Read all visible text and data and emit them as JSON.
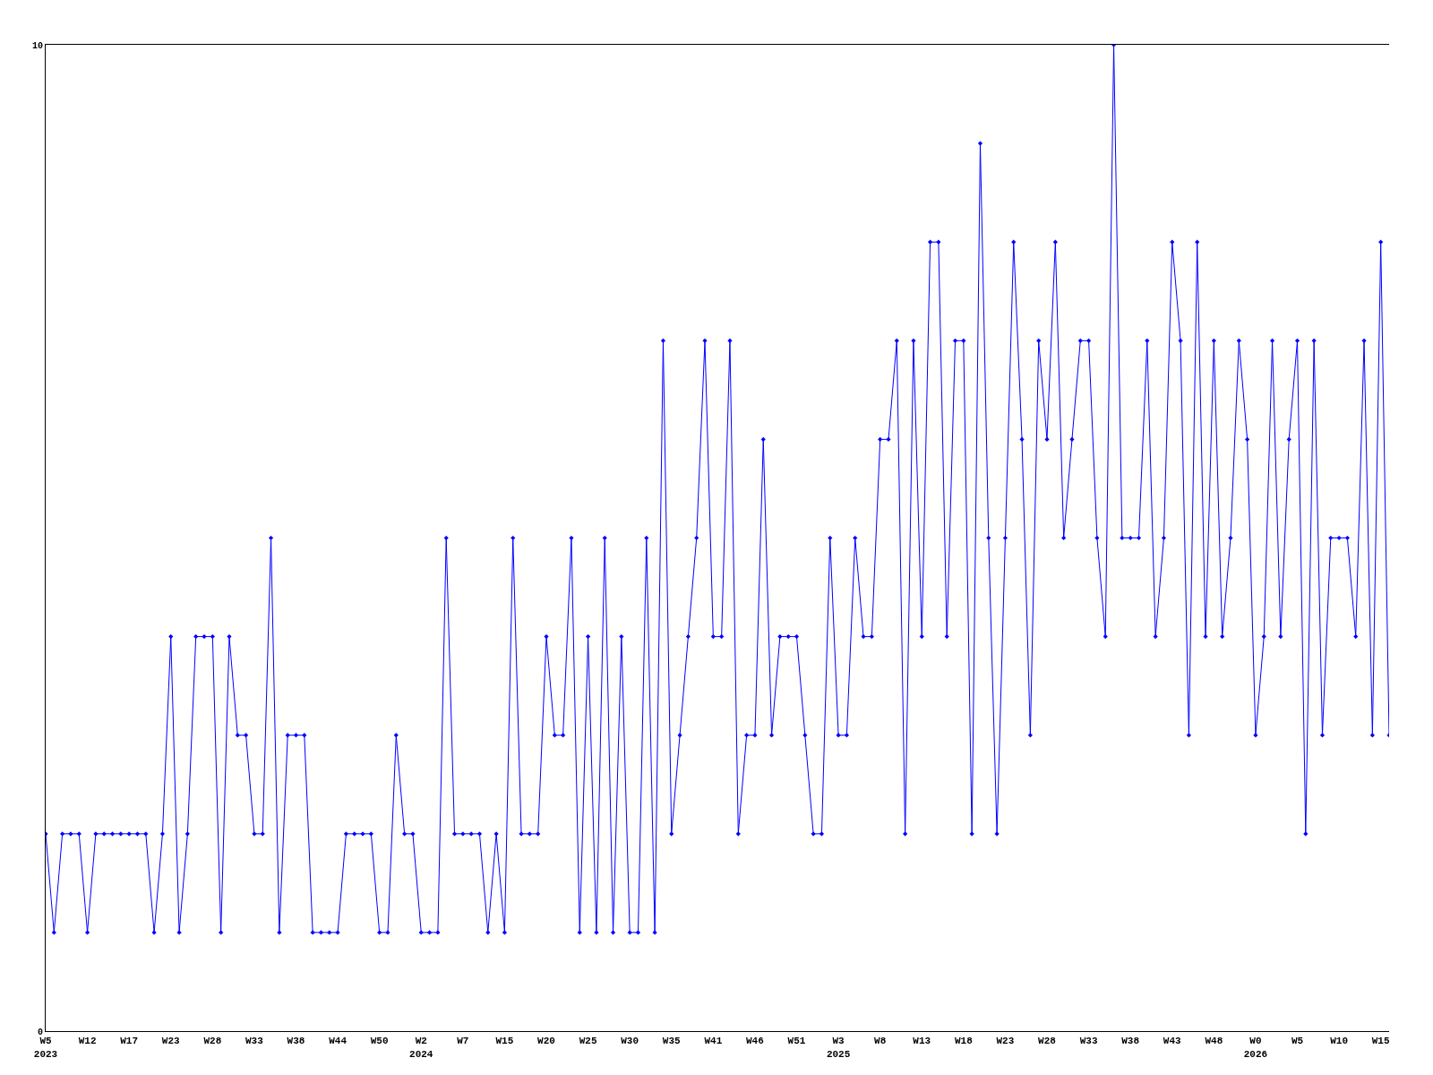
{
  "chart_data": {
    "type": "line",
    "categories": [
      "W5\n2023",
      null,
      null,
      null,
      null,
      "W12",
      null,
      null,
      null,
      null,
      "W17",
      null,
      null,
      null,
      null,
      "W23",
      null,
      null,
      null,
      null,
      "W28",
      null,
      null,
      null,
      null,
      "W33",
      null,
      null,
      null,
      null,
      "W38",
      null,
      null,
      null,
      null,
      "W44",
      null,
      null,
      null,
      null,
      "W50",
      null,
      null,
      null,
      null,
      "W2\n2024",
      null,
      null,
      null,
      null,
      "W7",
      null,
      null,
      null,
      null,
      "W15",
      null,
      null,
      null,
      null,
      "W20",
      null,
      null,
      null,
      null,
      "W25",
      null,
      null,
      null,
      null,
      "W30",
      null,
      null,
      null,
      null,
      "W35",
      null,
      null,
      null,
      null,
      "W41",
      null,
      null,
      null,
      null,
      "W46",
      null,
      null,
      null,
      null,
      "W51",
      null,
      null,
      null,
      null,
      "W3\n2025",
      null,
      null,
      null,
      null,
      "W8",
      null,
      null,
      null,
      null,
      "W13",
      null,
      null,
      null,
      null,
      "W18",
      null,
      null,
      null,
      null,
      "W23",
      null,
      null,
      null,
      null,
      "W28",
      null,
      null,
      null,
      null,
      "W33",
      null,
      null,
      null,
      null,
      "W38",
      null,
      null,
      null,
      null,
      "W43",
      null,
      null,
      null,
      null,
      "W48",
      null,
      null,
      null,
      null,
      "W0\n2026",
      null,
      null,
      null,
      null,
      "W5",
      null,
      null,
      null,
      null,
      "W10",
      null,
      null,
      null,
      null,
      "W15",
      null
    ],
    "values": [
      2,
      1,
      2,
      2,
      2,
      1,
      2,
      2,
      2,
      2,
      2,
      2,
      2,
      1,
      2,
      4,
      1,
      2,
      4,
      4,
      4,
      1,
      4,
      3,
      3,
      2,
      2,
      5,
      1,
      3,
      3,
      3,
      1,
      1,
      1,
      1,
      2,
      2,
      2,
      2,
      1,
      1,
      3,
      2,
      2,
      1,
      1,
      1,
      5,
      2,
      2,
      2,
      2,
      1,
      2,
      1,
      5,
      2,
      2,
      2,
      4,
      3,
      3,
      5,
      1,
      4,
      1,
      5,
      1,
      4,
      1,
      1,
      5,
      1,
      7,
      2,
      3,
      4,
      5,
      7,
      4,
      4,
      7,
      2,
      3,
      3,
      6,
      3,
      4,
      4,
      4,
      3,
      2,
      2,
      5,
      3,
      3,
      5,
      4,
      4,
      6,
      6,
      7,
      2,
      7,
      4,
      8,
      8,
      4,
      7,
      7,
      2,
      9,
      5,
      2,
      5,
      8,
      6,
      3,
      7,
      6,
      8,
      5,
      6,
      7,
      7,
      5,
      4,
      10,
      5,
      5,
      5,
      7,
      4,
      5,
      8,
      7,
      3,
      8,
      4,
      7,
      4,
      5,
      7,
      6,
      3,
      4,
      7,
      4,
      6,
      7,
      2,
      7,
      3,
      5,
      5,
      5,
      4,
      7,
      3,
      8,
      3
    ],
    "color": "#0000ff",
    "ylim": [
      0,
      10
    ],
    "yticks": [
      0,
      10
    ],
    "marker": "diamond",
    "line_style": "solid",
    "grid": false,
    "legend": false
  }
}
